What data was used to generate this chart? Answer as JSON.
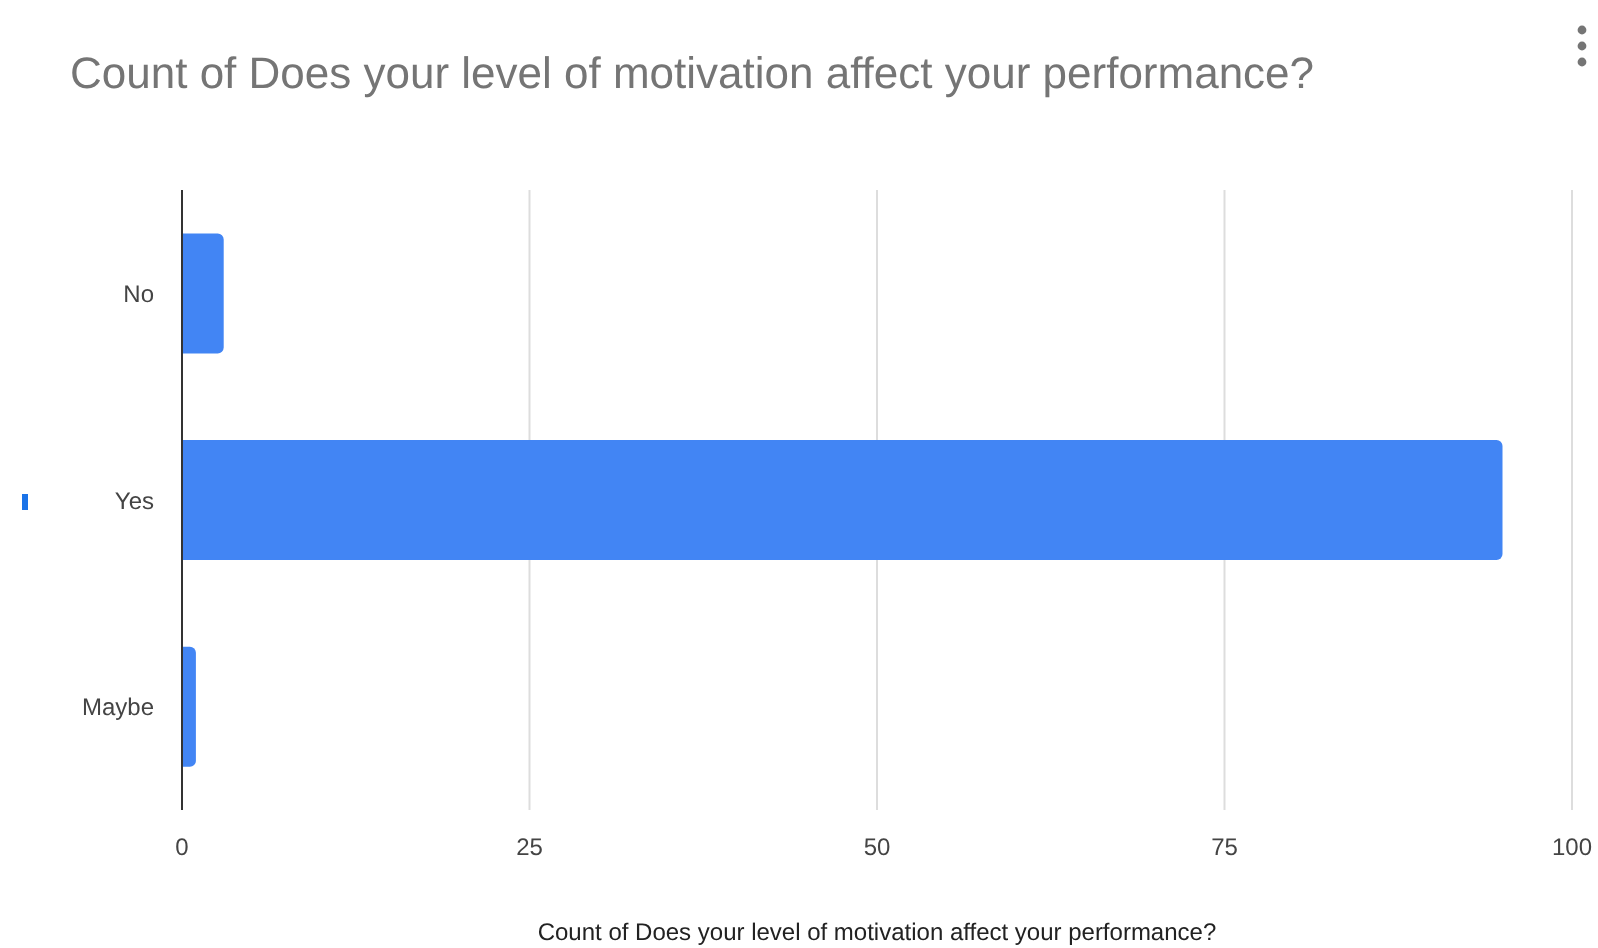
{
  "chart_data": {
    "type": "bar",
    "orientation": "horizontal",
    "title": "Count of Does your level of motivation affect your performance?",
    "xlabel": "Count of Does your level of motivation affect your performance?",
    "categories": [
      "No",
      "Yes",
      "Maybe"
    ],
    "values": [
      3,
      95,
      1
    ],
    "color": "#4285f4",
    "xlim": [
      0,
      100
    ],
    "xticks": [
      0,
      25,
      50,
      75,
      100
    ],
    "grid": "x",
    "legend": false
  }
}
